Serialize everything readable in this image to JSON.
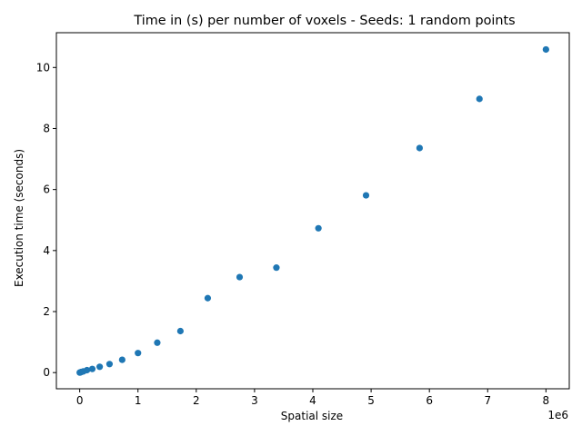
{
  "chart_data": {
    "type": "scatter",
    "title": "Time in (s) per number of voxels - Seeds: 1 random points",
    "xlabel": "Spatial size",
    "ylabel": "Execution time (seconds)",
    "x_offset_label": "1e6",
    "xlim": [
      -0.4,
      8.4
    ],
    "ylim": [
      -0.53,
      11.14
    ],
    "x_ticks": [
      0,
      1,
      2,
      3,
      4,
      5,
      6,
      7,
      8
    ],
    "y_ticks": [
      0,
      2,
      4,
      6,
      8,
      10
    ],
    "grid": false,
    "marker_color": "#1f77b4",
    "series": [
      {
        "x": [
          0.001,
          0.008,
          0.027,
          0.064,
          0.125,
          0.216,
          0.343,
          0.512,
          0.729,
          1.0,
          1.331,
          1.728,
          2.197,
          2.744,
          3.375,
          4.096,
          4.913,
          5.832,
          6.859,
          8.0
        ],
        "y": [
          0.0,
          0.005,
          0.02,
          0.04,
          0.08,
          0.12,
          0.19,
          0.28,
          0.42,
          0.64,
          0.98,
          1.36,
          2.44,
          3.13,
          3.44,
          4.73,
          5.81,
          7.36,
          8.97,
          10.59
        ]
      }
    ]
  }
}
